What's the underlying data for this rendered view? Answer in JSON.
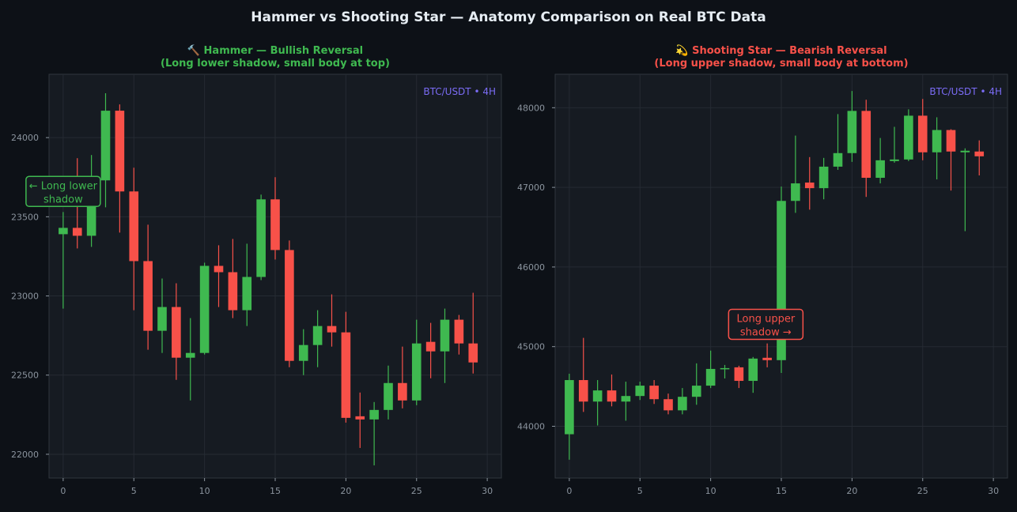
{
  "suptitle": "Hammer vs Shooting Star — Anatomy Comparison on Real BTC Data",
  "colors": {
    "background": "#0d1117",
    "panel": "#161b22",
    "grid": "#252b33",
    "axis_text": "#8b949e",
    "bull": "#3fb950",
    "bear": "#f85149",
    "watermark": "#7b6cf6",
    "title": "#e6edf3"
  },
  "chart_data": [
    {
      "type": "candlestick",
      "title_line1": "🔨 Hammer — Bullish Reversal",
      "title_line2": "(Long lower shadow, small body at top)",
      "title_color": "#3fb950",
      "watermark": "BTC/USDT • 4H",
      "xlim": [
        -1,
        31
      ],
      "ylim": [
        21850,
        24400
      ],
      "x_ticks": [
        0,
        5,
        10,
        15,
        20,
        25,
        30
      ],
      "y_ticks": [
        22000,
        22500,
        23000,
        23500,
        24000
      ],
      "annotation": {
        "line1": "← Long lower",
        "line2": "shadow",
        "x": 0,
        "y": 23660,
        "color": "#3fb950"
      },
      "candles": [
        {
          "x": 0,
          "open": 23390,
          "high": 23530,
          "low": 22920,
          "close": 23430
        },
        {
          "x": 1,
          "open": 23430,
          "high": 23870,
          "low": 23300,
          "close": 23380
        },
        {
          "x": 2,
          "open": 23380,
          "high": 23890,
          "low": 23310,
          "close": 23730
        },
        {
          "x": 3,
          "open": 23730,
          "high": 24280,
          "low": 23560,
          "close": 24170
        },
        {
          "x": 4,
          "open": 24170,
          "high": 24210,
          "low": 23400,
          "close": 23660
        },
        {
          "x": 5,
          "open": 23660,
          "high": 23810,
          "low": 22910,
          "close": 23220
        },
        {
          "x": 6,
          "open": 23220,
          "high": 23450,
          "low": 22660,
          "close": 22780
        },
        {
          "x": 7,
          "open": 22780,
          "high": 23110,
          "low": 22640,
          "close": 22930
        },
        {
          "x": 8,
          "open": 22930,
          "high": 23080,
          "low": 22470,
          "close": 22610
        },
        {
          "x": 9,
          "open": 22610,
          "high": 22860,
          "low": 22340,
          "close": 22640
        },
        {
          "x": 10,
          "open": 22640,
          "high": 23210,
          "low": 22630,
          "close": 23190
        },
        {
          "x": 11,
          "open": 23190,
          "high": 23320,
          "low": 22930,
          "close": 23150
        },
        {
          "x": 12,
          "open": 23150,
          "high": 23360,
          "low": 22860,
          "close": 22910
        },
        {
          "x": 13,
          "open": 22910,
          "high": 23330,
          "low": 22810,
          "close": 23120
        },
        {
          "x": 14,
          "open": 23120,
          "high": 23640,
          "low": 23100,
          "close": 23610
        },
        {
          "x": 15,
          "open": 23610,
          "high": 23750,
          "low": 23230,
          "close": 23290
        },
        {
          "x": 16,
          "open": 23290,
          "high": 23350,
          "low": 22550,
          "close": 22590
        },
        {
          "x": 17,
          "open": 22590,
          "high": 22790,
          "low": 22500,
          "close": 22690
        },
        {
          "x": 18,
          "open": 22690,
          "high": 22910,
          "low": 22550,
          "close": 22810
        },
        {
          "x": 19,
          "open": 22810,
          "high": 23010,
          "low": 22680,
          "close": 22770
        },
        {
          "x": 20,
          "open": 22770,
          "high": 22900,
          "low": 22200,
          "close": 22230
        },
        {
          "x": 21,
          "open": 22240,
          "high": 22390,
          "low": 22040,
          "close": 22220
        },
        {
          "x": 22,
          "open": 22220,
          "high": 22330,
          "low": 21930,
          "close": 22280
        },
        {
          "x": 23,
          "open": 22280,
          "high": 22560,
          "low": 22220,
          "close": 22450
        },
        {
          "x": 24,
          "open": 22450,
          "high": 22680,
          "low": 22290,
          "close": 22340
        },
        {
          "x": 25,
          "open": 22340,
          "high": 22850,
          "low": 22310,
          "close": 22700
        },
        {
          "x": 26,
          "open": 22710,
          "high": 22830,
          "low": 22480,
          "close": 22650
        },
        {
          "x": 27,
          "open": 22650,
          "high": 22920,
          "low": 22450,
          "close": 22850
        },
        {
          "x": 28,
          "open": 22850,
          "high": 22880,
          "low": 22630,
          "close": 22700
        },
        {
          "x": 29,
          "open": 22700,
          "high": 23020,
          "low": 22510,
          "close": 22580
        }
      ]
    },
    {
      "type": "candlestick",
      "title_line1": "💫 Shooting Star — Bearish Reversal",
      "title_line2": "(Long upper shadow, small body at bottom)",
      "title_color": "#f85149",
      "watermark": "BTC/USDT • 4H",
      "xlim": [
        -1,
        31
      ],
      "ylim": [
        43350,
        48420
      ],
      "x_ticks": [
        0,
        5,
        10,
        15,
        20,
        25,
        30
      ],
      "y_ticks": [
        44000,
        45000,
        46000,
        47000,
        48000
      ],
      "annotation": {
        "line1": "Long upper",
        "line2": "shadow →",
        "x": 13.9,
        "y": 45280,
        "color": "#f85149"
      },
      "candles": [
        {
          "x": 0,
          "open": 43900,
          "high": 44660,
          "low": 43580,
          "close": 44580
        },
        {
          "x": 1,
          "open": 44580,
          "high": 45110,
          "low": 44180,
          "close": 44310
        },
        {
          "x": 2,
          "open": 44310,
          "high": 44580,
          "low": 44010,
          "close": 44450
        },
        {
          "x": 3,
          "open": 44450,
          "high": 44650,
          "low": 44250,
          "close": 44310
        },
        {
          "x": 4,
          "open": 44310,
          "high": 44560,
          "low": 44070,
          "close": 44380
        },
        {
          "x": 5,
          "open": 44380,
          "high": 44560,
          "low": 44330,
          "close": 44510
        },
        {
          "x": 6,
          "open": 44510,
          "high": 44580,
          "low": 44280,
          "close": 44340
        },
        {
          "x": 7,
          "open": 44340,
          "high": 44410,
          "low": 44150,
          "close": 44200
        },
        {
          "x": 8,
          "open": 44200,
          "high": 44480,
          "low": 44150,
          "close": 44370
        },
        {
          "x": 9,
          "open": 44370,
          "high": 44790,
          "low": 44270,
          "close": 44510
        },
        {
          "x": 10,
          "open": 44510,
          "high": 44950,
          "low": 44480,
          "close": 44720
        },
        {
          "x": 11,
          "open": 44720,
          "high": 44770,
          "low": 44600,
          "close": 44730
        },
        {
          "x": 12,
          "open": 44740,
          "high": 44760,
          "low": 44480,
          "close": 44570
        },
        {
          "x": 13,
          "open": 44570,
          "high": 44870,
          "low": 44420,
          "close": 44850
        },
        {
          "x": 14,
          "open": 44860,
          "high": 45040,
          "low": 44740,
          "close": 44830
        },
        {
          "x": 15,
          "open": 44830,
          "high": 47010,
          "low": 44670,
          "close": 46830
        },
        {
          "x": 16,
          "open": 46830,
          "high": 47650,
          "low": 46680,
          "close": 47050
        },
        {
          "x": 17,
          "open": 47060,
          "high": 47380,
          "low": 46720,
          "close": 46990
        },
        {
          "x": 18,
          "open": 46990,
          "high": 47370,
          "low": 46850,
          "close": 47260
        },
        {
          "x": 19,
          "open": 47260,
          "high": 47920,
          "low": 47220,
          "close": 47430
        },
        {
          "x": 20,
          "open": 47430,
          "high": 48210,
          "low": 47320,
          "close": 47960
        },
        {
          "x": 21,
          "open": 47960,
          "high": 48100,
          "low": 46880,
          "close": 47120
        },
        {
          "x": 22,
          "open": 47120,
          "high": 47620,
          "low": 47050,
          "close": 47340
        },
        {
          "x": 23,
          "open": 47330,
          "high": 47760,
          "low": 47310,
          "close": 47350
        },
        {
          "x": 24,
          "open": 47350,
          "high": 47980,
          "low": 47330,
          "close": 47900
        },
        {
          "x": 25,
          "open": 47900,
          "high": 48110,
          "low": 47340,
          "close": 47440
        },
        {
          "x": 26,
          "open": 47440,
          "high": 47880,
          "low": 47100,
          "close": 47720
        },
        {
          "x": 27,
          "open": 47720,
          "high": 47730,
          "low": 46960,
          "close": 47450
        },
        {
          "x": 28,
          "open": 47440,
          "high": 47490,
          "low": 46450,
          "close": 47460
        },
        {
          "x": 29,
          "open": 47450,
          "high": 47590,
          "low": 47150,
          "close": 47390
        }
      ]
    }
  ]
}
